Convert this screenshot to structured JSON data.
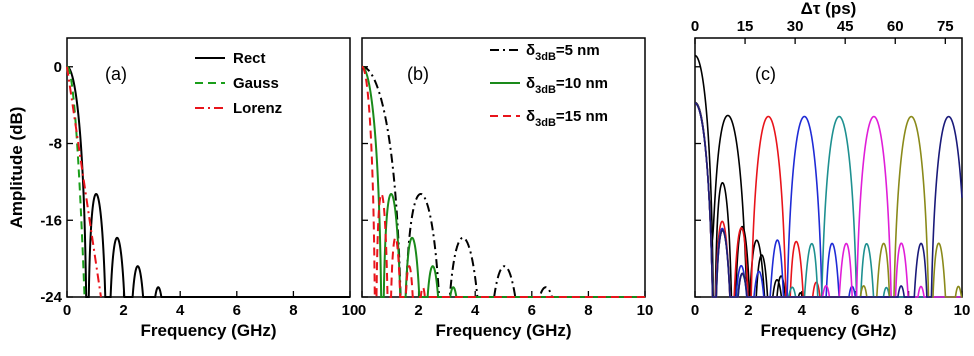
{
  "chart_data": [
    {
      "panel": "(a)",
      "type": "line",
      "xlabel": "Frequency (GHz)",
      "ylabel": "Amplitude (dB)",
      "xlim": [
        0,
        10
      ],
      "ylim": [
        -24,
        3
      ],
      "xticks": [
        "0",
        "2",
        "4",
        "6",
        "8",
        "10"
      ],
      "yticks": [
        "0",
        "-8",
        "-16",
        "-24"
      ],
      "series": [
        {
          "name": "Rect",
          "color": "#000000",
          "dash": "solid",
          "shape": "sinc",
          "first_zero_GHz": 0.72,
          "peak_dB": 0
        },
        {
          "name": "Gauss",
          "color": "#1a9e1a",
          "dash": "dash",
          "shape": "gauss",
          "cutoff_GHz": 0.62,
          "peak_dB": 0
        },
        {
          "name": "Lorenz",
          "color": "#e8141b",
          "dash": "dashdot",
          "shape": "lorentz",
          "cutoff_GHz": 1.2,
          "peak_dB": 0
        }
      ]
    },
    {
      "panel": "(b)",
      "type": "line",
      "xlabel": "Frequency (GHz)",
      "xlim": [
        0,
        10
      ],
      "ylim": [
        -24,
        3
      ],
      "xticks": [
        "0",
        "2",
        "4",
        "6",
        "8",
        "10"
      ],
      "series": [
        {
          "name": "δ3dB=5 nm",
          "symbol": "δ",
          "sub": "3dB",
          "value": "=5 nm",
          "color": "#000000",
          "dash": "dashdot",
          "first_zero_GHz": 1.45
        },
        {
          "name": "δ3dB=10 nm",
          "symbol": "δ",
          "sub": "3dB",
          "value": "=10 nm",
          "color": "#1a8a1a",
          "dash": "solid",
          "first_zero_GHz": 0.72
        },
        {
          "name": "δ3dB=15 nm",
          "symbol": "δ",
          "sub": "3dB",
          "value": "=15 nm",
          "color": "#e8141b",
          "dash": "dash",
          "first_zero_GHz": 0.48
        }
      ]
    },
    {
      "panel": "(c)",
      "type": "line",
      "xlabel": "Frequency (GHz)",
      "x2label": "Δτ (ps)",
      "xlim": [
        0,
        10
      ],
      "x2lim": [
        0,
        80
      ],
      "ylim": [
        -24,
        3
      ],
      "xticks": [
        "0",
        "2",
        "4",
        "6",
        "8",
        "10"
      ],
      "x2ticks": [
        "0",
        "15",
        "30",
        "45",
        "60",
        "75"
      ],
      "first_zero_GHz": 0.72,
      "series": [
        {
          "color": "#000000",
          "peak_GHz": 0
        },
        {
          "color": "#000000",
          "peak_GHz": 1.25
        },
        {
          "color": "#e8141b",
          "peak_GHz": 2.75
        },
        {
          "color": "#1f2bd6",
          "peak_GHz": 4.1
        },
        {
          "color": "#1e9090",
          "peak_GHz": 5.4
        },
        {
          "color": "#e01ed8",
          "peak_GHz": 6.7
        },
        {
          "color": "#8a8a1a",
          "peak_GHz": 8.1
        },
        {
          "color": "#1a1a7a",
          "peak_GHz": 9.5
        }
      ]
    }
  ]
}
